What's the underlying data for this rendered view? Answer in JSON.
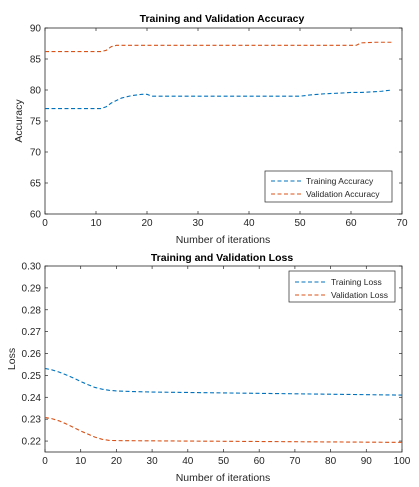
{
  "chart_data": [
    {
      "type": "line",
      "title": "Training and Validation Accuracy",
      "xlabel": "Number of iterations",
      "ylabel": "Accuracy",
      "xlim": [
        0,
        70
      ],
      "ylim": [
        60,
        90
      ],
      "xticks": [
        0,
        10,
        20,
        30,
        40,
        50,
        60,
        70
      ],
      "yticks": [
        60,
        65,
        70,
        75,
        80,
        85,
        90
      ],
      "grid": false,
      "legend_position": "bottom-right",
      "series": [
        {
          "name": "Training Accuracy",
          "color": "#0072BD",
          "x": [
            0,
            5,
            10,
            11,
            12,
            13,
            14,
            15,
            17,
            19,
            20,
            21,
            22,
            30,
            40,
            49,
            50,
            52,
            55,
            58,
            60,
            62,
            64,
            66,
            68
          ],
          "y": [
            77,
            77,
            77,
            77,
            77.3,
            77.9,
            78.3,
            78.7,
            79.1,
            79.3,
            79.3,
            79,
            79,
            79,
            79,
            79,
            79,
            79.2,
            79.4,
            79.5,
            79.6,
            79.6,
            79.7,
            79.8,
            80
          ]
        },
        {
          "name": "Validation Accuracy",
          "color": "#D95319",
          "x": [
            0,
            5,
            11,
            12,
            13,
            14,
            20,
            30,
            40,
            50,
            60,
            61,
            62,
            65,
            68
          ],
          "y": [
            86.2,
            86.2,
            86.2,
            86.4,
            87,
            87.2,
            87.2,
            87.2,
            87.2,
            87.2,
            87.2,
            87.2,
            87.6,
            87.7,
            87.7
          ]
        }
      ]
    },
    {
      "type": "line",
      "title": "Training and Validation Loss",
      "xlabel": "Number of iterations",
      "ylabel": "Loss",
      "xlim": [
        0,
        100
      ],
      "ylim": [
        0.215,
        0.3
      ],
      "xticks": [
        0,
        10,
        20,
        30,
        40,
        50,
        60,
        70,
        80,
        90,
        100
      ],
      "yticks": [
        0.22,
        0.23,
        0.24,
        0.25,
        0.26,
        0.27,
        0.28,
        0.29,
        0.3
      ],
      "grid": false,
      "legend_position": "top-right",
      "series": [
        {
          "name": "Training Loss",
          "color": "#0072BD",
          "x": [
            0,
            2,
            4,
            6,
            8,
            10,
            12,
            14,
            16,
            18,
            20,
            25,
            30,
            40,
            50,
            60,
            70,
            80,
            90,
            100
          ],
          "y": [
            0.2532,
            0.2525,
            0.2515,
            0.2502,
            0.2488,
            0.2472,
            0.2458,
            0.2445,
            0.2437,
            0.2432,
            0.2429,
            0.2426,
            0.2424,
            0.2422,
            0.242,
            0.2418,
            0.2416,
            0.2414,
            0.2412,
            0.241
          ]
        },
        {
          "name": "Validation Loss",
          "color": "#D95319",
          "x": [
            0,
            2,
            4,
            6,
            8,
            10,
            12,
            14,
            16,
            18,
            20,
            30,
            40,
            50,
            60,
            70,
            80,
            90,
            100
          ],
          "y": [
            0.2308,
            0.2302,
            0.2292,
            0.2278,
            0.2262,
            0.2246,
            0.2232,
            0.2218,
            0.2208,
            0.2203,
            0.2202,
            0.2201,
            0.22,
            0.2199,
            0.2198,
            0.2197,
            0.2196,
            0.2195,
            0.2194
          ]
        }
      ]
    }
  ]
}
